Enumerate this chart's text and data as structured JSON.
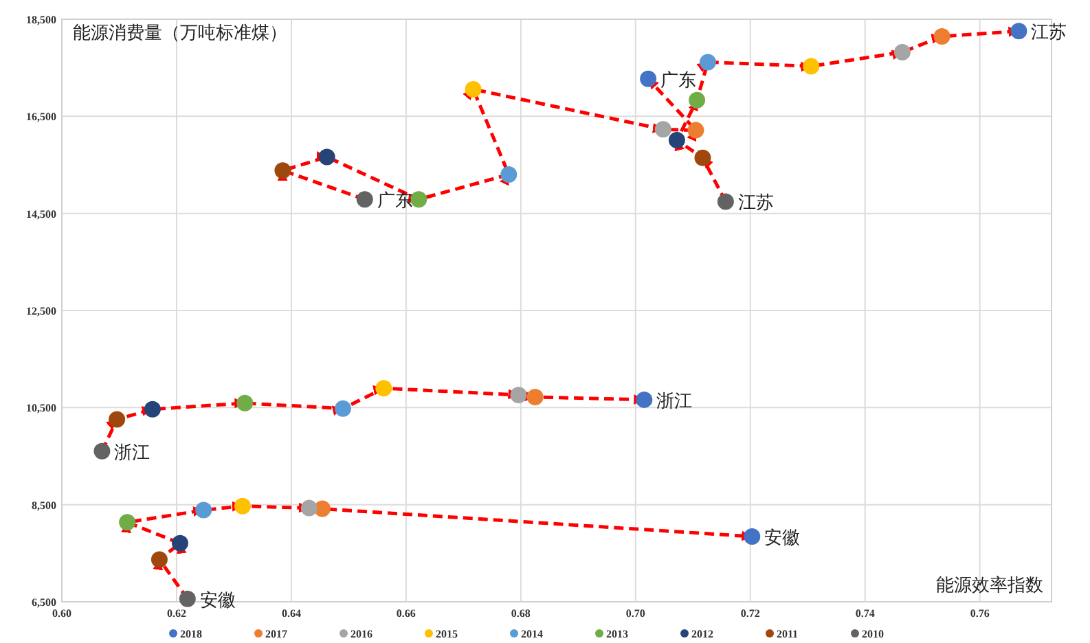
{
  "chart_data": {
    "type": "scatter",
    "xlabel": "能源效率指数",
    "ylabel": "能源消费量（万吨标准煤）",
    "xlim": [
      0.6,
      0.7725
    ],
    "ylim": [
      6500,
      18500
    ],
    "xticks": [
      {
        "value": 0.6,
        "label": "0.60"
      },
      {
        "value": 0.62,
        "label": "0.62"
      },
      {
        "value": 0.64,
        "label": "0.64"
      },
      {
        "value": 0.66,
        "label": "0.66"
      },
      {
        "value": 0.68,
        "label": "0.68"
      },
      {
        "value": 0.7,
        "label": "0.70"
      },
      {
        "value": 0.72,
        "label": "0.72"
      },
      {
        "value": 0.74,
        "label": "0.74"
      },
      {
        "value": 0.76,
        "label": "0.76"
      }
    ],
    "yticks": [
      {
        "value": 6500,
        "label": "6,500"
      },
      {
        "value": 8500,
        "label": "8,500"
      },
      {
        "value": 10500,
        "label": "10,500"
      },
      {
        "value": 12500,
        "label": "12,500"
      },
      {
        "value": 14500,
        "label": "14,500"
      },
      {
        "value": 16500,
        "label": "16,500"
      },
      {
        "value": 18500,
        "label": "18,500"
      }
    ],
    "grid": true,
    "legend": "bottom",
    "marker": "circle",
    "series": [
      {
        "type": "line",
        "color": "#ff0000",
        "line_style": "dashed",
        "marker": "none",
        "x": [
          0.6528,
          0.6385,
          0.6462,
          0.6622,
          0.6779,
          0.6717,
          0.7048,
          0.7105,
          0.7022
        ],
        "values": [
          14790,
          15384,
          15663,
          14790,
          15301,
          17058,
          16232,
          16213,
          17273
        ]
      },
      {
        "type": "line",
        "color": "#ff0000",
        "line_style": "dashed",
        "marker": "none",
        "x": [
          0.7157,
          0.7117,
          0.7072,
          0.7107,
          0.7126,
          0.7306,
          0.7465,
          0.7534,
          0.7668
        ],
        "values": [
          14743,
          15646,
          16009,
          16835,
          17616,
          17532,
          17822,
          18146,
          18257
        ]
      },
      {
        "type": "line",
        "color": "#ff0000",
        "line_style": "dashed",
        "marker": "none",
        "x": [
          0.607,
          0.6096,
          0.6158,
          0.6319,
          0.649,
          0.6561,
          0.6796,
          0.6825,
          0.7015
        ],
        "values": [
          9602,
          10257,
          10467,
          10592,
          10481,
          10899,
          10759,
          10718,
          10662
        ]
      },
      {
        "type": "line",
        "color": "#ff0000",
        "line_style": "dashed",
        "marker": "none",
        "x": [
          0.6219,
          0.617,
          0.6206,
          0.6114,
          0.6247,
          0.6315,
          0.6431,
          0.6454,
          0.7203
        ],
        "values": [
          6561,
          7370,
          7705,
          8137,
          8388,
          8472,
          8430,
          8416,
          7844
        ]
      },
      {
        "name": "2018",
        "color": "#4472c4",
        "x": [
          0.7022,
          0.7668,
          0.7015,
          0.7203
        ],
        "values": [
          17273,
          18257,
          10662,
          7844
        ]
      },
      {
        "name": "2017",
        "color": "#ed7d31",
        "x": [
          0.7105,
          0.7534,
          0.6825,
          0.6454
        ],
        "values": [
          16213,
          18146,
          10718,
          8416
        ]
      },
      {
        "name": "2016",
        "color": "#a5a5a5",
        "x": [
          0.7048,
          0.7465,
          0.6796,
          0.6431
        ],
        "values": [
          16232,
          17822,
          10759,
          8430
        ]
      },
      {
        "name": "2015",
        "color": "#ffc000",
        "x": [
          0.6717,
          0.7306,
          0.6561,
          0.6315
        ],
        "values": [
          17058,
          17532,
          10899,
          8472
        ]
      },
      {
        "name": "2014",
        "color": "#5b9bd5",
        "x": [
          0.6779,
          0.7126,
          0.649,
          0.6247
        ],
        "values": [
          15301,
          17616,
          10481,
          8388
        ]
      },
      {
        "name": "2013",
        "color": "#70ad47",
        "x": [
          0.6622,
          0.7107,
          0.6319,
          0.6114
        ],
        "values": [
          14790,
          16835,
          10592,
          8137
        ]
      },
      {
        "name": "2012",
        "color": "#264478",
        "x": [
          0.6462,
          0.7072,
          0.6158,
          0.6206
        ],
        "values": [
          15663,
          16009,
          10467,
          7705
        ]
      },
      {
        "name": "2011",
        "color": "#9e480e",
        "x": [
          0.6385,
          0.7117,
          0.6096,
          0.617
        ],
        "values": [
          15384,
          15646,
          10257,
          7370
        ]
      },
      {
        "name": "2010",
        "color": "#636363",
        "x": [
          0.6528,
          0.7157,
          0.607,
          0.6219
        ],
        "values": [
          14790,
          14743,
          9602,
          6561
        ]
      }
    ],
    "annotations": [
      {
        "text": "广东",
        "x": 0.6528,
        "y": 14790
      },
      {
        "text": "广东",
        "x": 0.7022,
        "y": 17273
      },
      {
        "text": "江苏",
        "x": 0.7157,
        "y": 14743
      },
      {
        "text": "江苏",
        "x": 0.7668,
        "y": 18257
      },
      {
        "text": "浙江",
        "x": 0.607,
        "y": 9602
      },
      {
        "text": "浙江",
        "x": 0.7015,
        "y": 10662
      },
      {
        "text": "安徽",
        "x": 0.6219,
        "y": 6561
      },
      {
        "text": "安徽",
        "x": 0.7203,
        "y": 7844
      }
    ]
  }
}
